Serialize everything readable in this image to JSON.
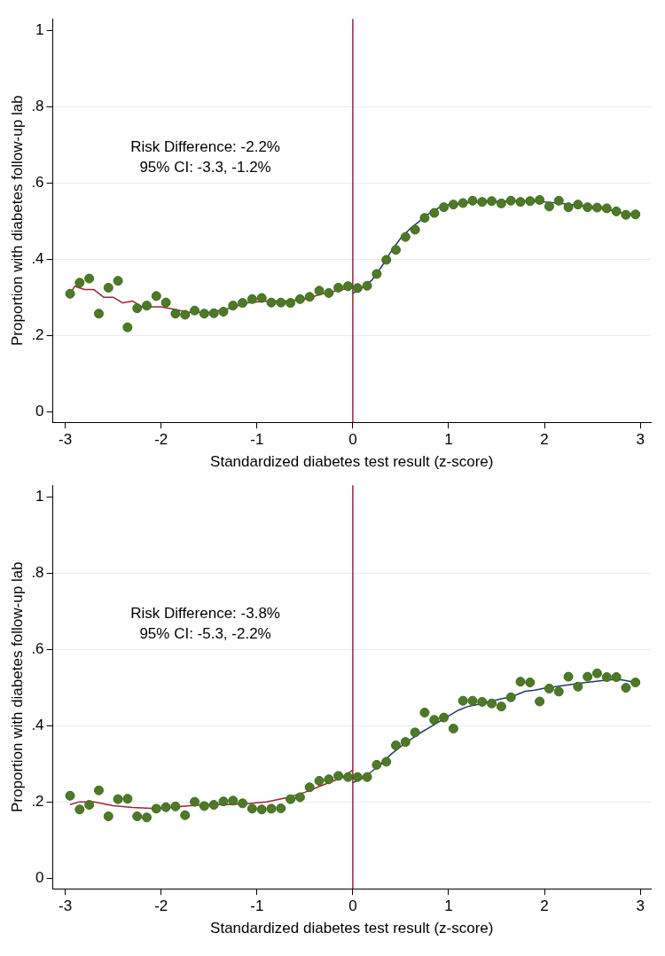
{
  "chart_data": [
    {
      "type": "scatter",
      "xlabel": "Standardized diabetes test result (z-score)",
      "ylabel": "Proportion with diabetes follow-up lab",
      "xlim": [
        -3.13,
        3.11
      ],
      "ylim": [
        -0.028,
        1.03
      ],
      "xticks": [
        -3,
        -2,
        -1,
        0,
        1,
        2,
        3
      ],
      "yticks": [
        {
          "value": 0,
          "label": "0"
        },
        {
          "value": 0.2,
          "label": ".2"
        },
        {
          "value": 0.4,
          "label": ".4"
        },
        {
          "value": 0.6,
          "label": ".6"
        },
        {
          "value": 0.8,
          "label": ".8"
        },
        {
          "value": 1,
          "label": "1"
        }
      ],
      "grid": "y",
      "legend": false,
      "marker": "circle",
      "annotations": [
        "Risk Difference: -2.2%",
        "95% CI: -3.3, -1.2%"
      ],
      "ref_lines": [
        {
          "axis": "x",
          "value": 0,
          "color": "#a3203b"
        }
      ],
      "series": [
        {
          "color": "#4e7a27",
          "x": [
            -2.95,
            -2.85,
            -2.75,
            -2.65,
            -2.55,
            -2.45,
            -2.35,
            -2.25,
            -2.15,
            -2.05,
            -1.95,
            -1.85,
            -1.75,
            -1.65,
            -1.55,
            -1.45,
            -1.35,
            -1.25,
            -1.15,
            -1.05,
            -0.95,
            -0.85,
            -0.75,
            -0.65,
            -0.55,
            -0.45,
            -0.35,
            -0.25,
            -0.15,
            -0.05,
            0.05,
            0.15,
            0.25,
            0.35,
            0.45,
            0.55,
            0.65,
            0.75,
            0.85,
            0.95,
            1.05,
            1.15,
            1.25,
            1.35,
            1.45,
            1.55,
            1.65,
            1.75,
            1.85,
            1.95,
            2.05,
            2.15,
            2.25,
            2.35,
            2.45,
            2.55,
            2.65,
            2.75,
            2.85,
            2.95
          ],
          "values": [
            0.309,
            0.338,
            0.349,
            0.257,
            0.325,
            0.343,
            0.221,
            0.271,
            0.278,
            0.303,
            0.286,
            0.257,
            0.254,
            0.265,
            0.257,
            0.258,
            0.262,
            0.278,
            0.285,
            0.295,
            0.298,
            0.286,
            0.286,
            0.285,
            0.295,
            0.301,
            0.317,
            0.311,
            0.325,
            0.329,
            0.324,
            0.33,
            0.361,
            0.398,
            0.424,
            0.458,
            0.477,
            0.508,
            0.521,
            0.536,
            0.543,
            0.547,
            0.553,
            0.55,
            0.552,
            0.546,
            0.553,
            0.55,
            0.552,
            0.555,
            0.538,
            0.553,
            0.536,
            0.543,
            0.536,
            0.535,
            0.533,
            0.525,
            0.516,
            0.517
          ]
        },
        {
          "type": "line",
          "color": "#9b2335",
          "marker": "none",
          "x": [
            -2.95,
            -2.9,
            -2.8,
            -2.7,
            -2.6,
            -2.5,
            -2.4,
            -2.3,
            -2.2,
            -2.1,
            -2.0,
            -1.9,
            -1.8,
            -1.7,
            -1.5,
            -1.3,
            -1.1,
            -0.9,
            -0.7,
            -0.5,
            -0.3,
            -0.1,
            0
          ],
          "values": [
            0.31,
            0.329,
            0.32,
            0.32,
            0.3,
            0.3,
            0.285,
            0.29,
            0.275,
            0.275,
            0.275,
            0.27,
            0.265,
            0.26,
            0.26,
            0.27,
            0.285,
            0.29,
            0.29,
            0.295,
            0.31,
            0.32,
            0.33
          ]
        },
        {
          "type": "line",
          "color": "#1f3b6b",
          "marker": "none",
          "x": [
            0,
            0.1,
            0.2,
            0.3,
            0.4,
            0.5,
            0.6,
            0.7,
            0.8,
            0.9,
            1.0,
            1.2,
            1.4,
            1.6,
            1.8,
            2.0,
            2.2,
            2.4,
            2.6,
            2.8,
            2.95
          ],
          "values": [
            0.31,
            0.325,
            0.345,
            0.38,
            0.42,
            0.455,
            0.48,
            0.5,
            0.52,
            0.535,
            0.543,
            0.548,
            0.55,
            0.552,
            0.552,
            0.55,
            0.545,
            0.54,
            0.533,
            0.522,
            0.517
          ]
        }
      ]
    },
    {
      "type": "scatter",
      "xlabel": "Standardized diabetes test result (z-score)",
      "ylabel": "Proportion with diabetes follow-up lab",
      "xlim": [
        -3.13,
        3.11
      ],
      "ylim": [
        -0.028,
        1.03
      ],
      "xticks": [
        -3,
        -2,
        -1,
        0,
        1,
        2,
        3
      ],
      "yticks": [
        {
          "value": 0,
          "label": "0"
        },
        {
          "value": 0.2,
          "label": ".2"
        },
        {
          "value": 0.4,
          "label": ".4"
        },
        {
          "value": 0.6,
          "label": ".6"
        },
        {
          "value": 0.8,
          "label": ".8"
        },
        {
          "value": 1,
          "label": "1"
        }
      ],
      "grid": "y",
      "legend": false,
      "marker": "circle",
      "annotations": [
        "Risk Difference: -3.8%",
        "95% CI: -5.3, -2.2%"
      ],
      "ref_lines": [
        {
          "axis": "x",
          "value": 0,
          "color": "#a3203b"
        }
      ],
      "series": [
        {
          "color": "#4e7a27",
          "x": [
            -2.95,
            -2.85,
            -2.75,
            -2.65,
            -2.55,
            -2.45,
            -2.35,
            -2.25,
            -2.15,
            -2.05,
            -1.95,
            -1.85,
            -1.75,
            -1.65,
            -1.55,
            -1.45,
            -1.35,
            -1.25,
            -1.15,
            -1.05,
            -0.95,
            -0.85,
            -0.75,
            -0.65,
            -0.55,
            -0.45,
            -0.35,
            -0.25,
            -0.15,
            -0.05,
            0.05,
            0.15,
            0.25,
            0.35,
            0.45,
            0.55,
            0.65,
            0.75,
            0.85,
            0.95,
            1.05,
            1.15,
            1.25,
            1.35,
            1.45,
            1.55,
            1.65,
            1.75,
            1.85,
            1.95,
            2.05,
            2.15,
            2.25,
            2.35,
            2.45,
            2.55,
            2.65,
            2.75,
            2.85,
            2.95
          ],
          "values": [
            0.216,
            0.18,
            0.192,
            0.23,
            0.162,
            0.207,
            0.208,
            0.162,
            0.159,
            0.182,
            0.186,
            0.188,
            0.165,
            0.2,
            0.189,
            0.192,
            0.201,
            0.203,
            0.196,
            0.182,
            0.18,
            0.182,
            0.183,
            0.207,
            0.212,
            0.238,
            0.255,
            0.259,
            0.268,
            0.265,
            0.265,
            0.265,
            0.297,
            0.305,
            0.348,
            0.357,
            0.382,
            0.434,
            0.415,
            0.421,
            0.392,
            0.465,
            0.465,
            0.462,
            0.458,
            0.45,
            0.474,
            0.515,
            0.513,
            0.463,
            0.497,
            0.489,
            0.528,
            0.502,
            0.528,
            0.537,
            0.527,
            0.527,
            0.499,
            0.513
          ]
        },
        {
          "type": "line",
          "color": "#9b2335",
          "marker": "none",
          "x": [
            -2.95,
            -2.85,
            -2.7,
            -2.5,
            -2.3,
            -2.1,
            -1.9,
            -1.7,
            -1.5,
            -1.3,
            -1.1,
            -0.9,
            -0.7,
            -0.5,
            -0.3,
            -0.1,
            0
          ],
          "values": [
            0.193,
            0.2,
            0.2,
            0.19,
            0.185,
            0.183,
            0.185,
            0.19,
            0.193,
            0.193,
            0.195,
            0.2,
            0.21,
            0.225,
            0.245,
            0.265,
            0.283
          ]
        },
        {
          "type": "line",
          "color": "#1f3b6b",
          "marker": "none",
          "x": [
            0,
            0.1,
            0.2,
            0.3,
            0.4,
            0.5,
            0.6,
            0.7,
            0.8,
            0.9,
            1.0,
            1.1,
            1.2,
            1.3,
            1.4,
            1.5,
            1.6,
            1.7,
            1.8,
            1.9,
            2.0,
            2.2,
            2.4,
            2.6,
            2.7,
            2.8,
            2.95
          ],
          "values": [
            0.25,
            0.262,
            0.28,
            0.3,
            0.325,
            0.345,
            0.363,
            0.38,
            0.395,
            0.41,
            0.425,
            0.44,
            0.45,
            0.455,
            0.462,
            0.467,
            0.473,
            0.48,
            0.49,
            0.493,
            0.498,
            0.505,
            0.512,
            0.518,
            0.52,
            0.52,
            0.513
          ]
        }
      ]
    }
  ]
}
